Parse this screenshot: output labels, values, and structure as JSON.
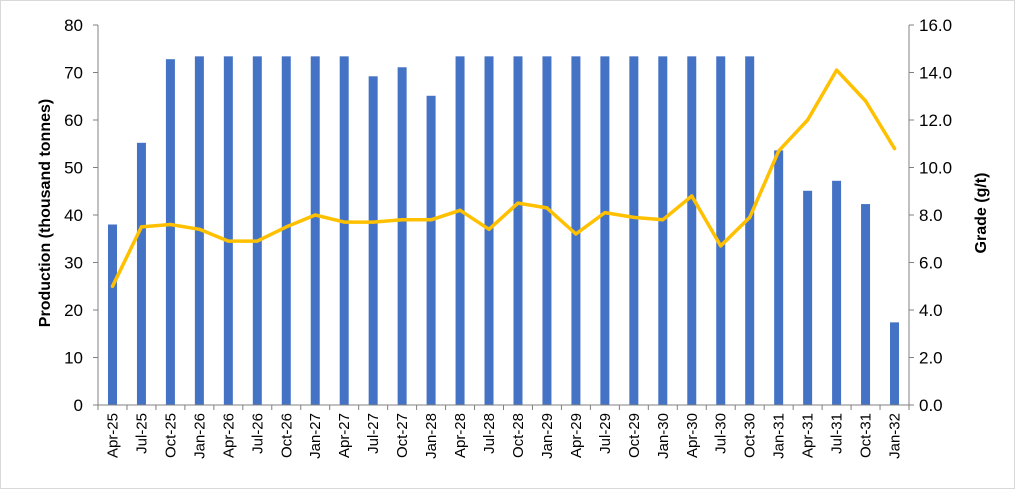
{
  "colors": {
    "bars": "#4472C4",
    "line": "#FFC000",
    "axis": "#808080",
    "grid": "none"
  },
  "chart_data": {
    "type": "bar",
    "combo": "bar-and-line",
    "categories": [
      "Apr-25",
      "Jul-25",
      "Oct-25",
      "Jan-26",
      "Apr-26",
      "Jul-26",
      "Oct-26",
      "Jan-27",
      "Apr-27",
      "Jul-27",
      "Oct-27",
      "Jan-28",
      "Apr-28",
      "Jul-28",
      "Oct-28",
      "Jan-29",
      "Apr-29",
      "Jul-29",
      "Oct-29",
      "Jan-30",
      "Apr-30",
      "Jul-30",
      "Oct-30",
      "Jan-31",
      "Apr-31",
      "Jul-31",
      "Oct-31",
      "Jan-32"
    ],
    "series": [
      {
        "type": "bar",
        "axis": "left",
        "values": [
          38,
          55.2,
          72.8,
          73.4,
          73.4,
          73.4,
          73.4,
          73.4,
          73.4,
          69.2,
          71.1,
          65.1,
          73.4,
          73.4,
          73.4,
          73.4,
          73.4,
          73.4,
          73.4,
          73.4,
          73.4,
          73.4,
          73.4,
          53.6,
          45.1,
          47.2,
          42.3,
          17.4
        ]
      },
      {
        "type": "line",
        "axis": "right",
        "values": [
          5.0,
          7.5,
          7.6,
          7.4,
          6.9,
          6.9,
          7.5,
          8.0,
          7.7,
          7.7,
          7.8,
          7.8,
          8.2,
          7.4,
          8.5,
          8.3,
          7.2,
          8.1,
          7.9,
          7.8,
          8.8,
          6.7,
          7.9,
          10.7,
          12.0,
          14.1,
          12.8,
          10.8
        ]
      }
    ],
    "ylabel": "Production  (thousand tonnes)",
    "y2label": "Grade (g/t)",
    "ylim": [
      0,
      80
    ],
    "y2lim": [
      0,
      16
    ],
    "yticks": [
      "0",
      "10",
      "20",
      "30",
      "40",
      "50",
      "60",
      "70",
      "80"
    ],
    "y2ticks": [
      "0.0",
      "2.0",
      "4.0",
      "6.0",
      "8.0",
      "10.0",
      "12.0",
      "14.0",
      "16.0"
    ],
    "grid": false,
    "legend": "none"
  }
}
